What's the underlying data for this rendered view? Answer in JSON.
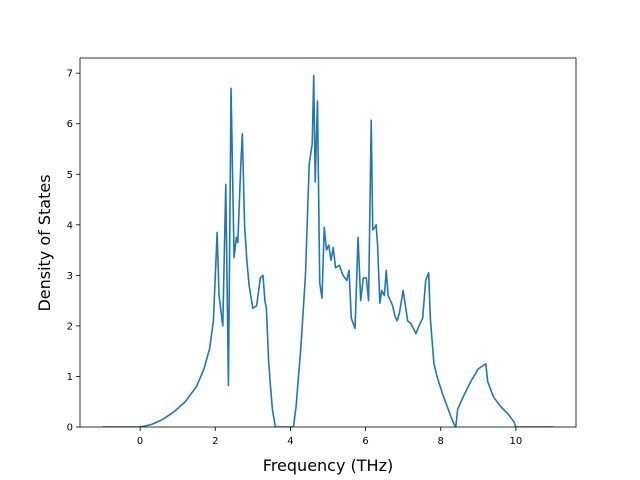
{
  "chart_data": {
    "type": "line",
    "title": "",
    "xlabel": "Frequency (THz)",
    "ylabel": "Density of States",
    "xlim": [
      -1.6,
      11.6
    ],
    "ylim": [
      0,
      7.3
    ],
    "xticks": [
      0,
      2,
      4,
      6,
      8,
      10
    ],
    "yticks": [
      0,
      1,
      2,
      3,
      4,
      5,
      6,
      7
    ],
    "grid": false,
    "series": [
      {
        "color": "#1f77b4",
        "x": [
          -1.0,
          0.0,
          0.3,
          0.6,
          0.9,
          1.2,
          1.5,
          1.7,
          1.85,
          1.95,
          2.05,
          2.1,
          2.2,
          2.28,
          2.35,
          2.42,
          2.5,
          2.56,
          2.6,
          2.68,
          2.72,
          2.78,
          2.84,
          2.9,
          3.0,
          3.1,
          3.2,
          3.27,
          3.32,
          3.36,
          3.42,
          3.47,
          3.52,
          3.6,
          3.66,
          3.75,
          3.9,
          4.08,
          4.15,
          4.28,
          4.4,
          4.5,
          4.58,
          4.62,
          4.66,
          4.72,
          4.78,
          4.84,
          4.9,
          4.96,
          5.02,
          5.08,
          5.14,
          5.2,
          5.3,
          5.4,
          5.5,
          5.56,
          5.62,
          5.72,
          5.8,
          5.87,
          5.94,
          6.02,
          6.08,
          6.15,
          6.19,
          6.25,
          6.28,
          6.32,
          6.38,
          6.43,
          6.5,
          6.55,
          6.6,
          6.66,
          6.72,
          6.78,
          6.84,
          6.9,
          7.0,
          7.12,
          7.2,
          7.27,
          7.34,
          7.42,
          7.52,
          7.6,
          7.68,
          7.72,
          7.75,
          7.82,
          7.9,
          8.05,
          8.2,
          8.3,
          8.36,
          8.4,
          8.45,
          8.6,
          8.8,
          9.0,
          9.2,
          9.25,
          9.4,
          9.6,
          9.8,
          9.95,
          10.0,
          10.5,
          11.0
        ],
        "values": [
          0.0,
          0.0,
          0.05,
          0.15,
          0.3,
          0.5,
          0.8,
          1.15,
          1.55,
          2.1,
          3.85,
          2.6,
          2.0,
          4.8,
          0.82,
          6.7,
          3.35,
          3.75,
          3.65,
          5.2,
          5.8,
          4.0,
          3.3,
          2.8,
          2.35,
          2.4,
          2.95,
          3.0,
          2.5,
          2.35,
          1.3,
          0.8,
          0.35,
          0.0,
          0.0,
          0.0,
          0.0,
          0.0,
          0.4,
          1.6,
          3.0,
          5.2,
          5.6,
          6.95,
          4.85,
          6.45,
          2.85,
          2.55,
          3.95,
          3.5,
          3.6,
          3.3,
          3.55,
          3.15,
          3.2,
          3.0,
          2.9,
          3.1,
          2.15,
          1.95,
          3.75,
          2.5,
          2.95,
          2.95,
          2.5,
          6.07,
          3.9,
          3.95,
          4.0,
          3.6,
          2.45,
          2.7,
          2.6,
          3.1,
          2.6,
          2.5,
          2.4,
          2.2,
          2.1,
          2.25,
          2.7,
          2.1,
          2.05,
          1.95,
          1.85,
          2.0,
          2.15,
          2.9,
          3.05,
          2.2,
          1.9,
          1.25,
          1.0,
          0.65,
          0.35,
          0.15,
          0.05,
          0.0,
          0.35,
          0.6,
          0.9,
          1.15,
          1.25,
          0.9,
          0.6,
          0.4,
          0.25,
          0.1,
          0.0,
          0.0,
          0.0
        ]
      }
    ]
  }
}
